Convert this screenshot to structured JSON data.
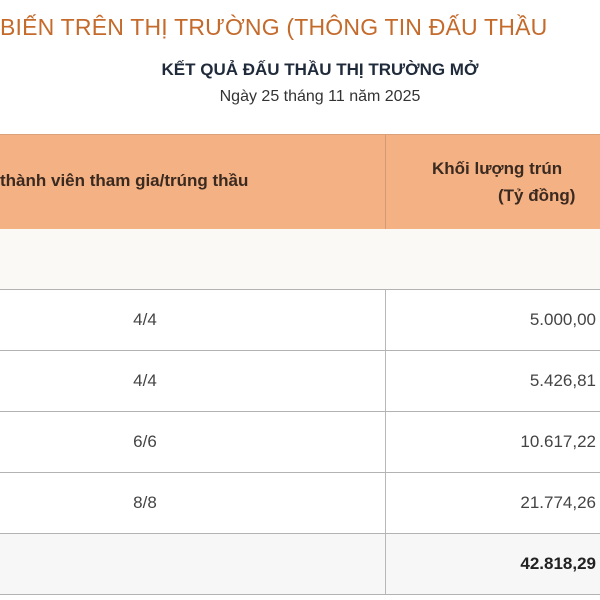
{
  "header": {
    "title": "BIẾN TRÊN THỊ TRƯỜNG (THÔNG TIN ĐẤU THẦU",
    "subtitle": "KẾT QUẢ ĐẤU THẦU THỊ TRƯỜNG MỞ",
    "date": "Ngày 25 tháng 11 năm 2025"
  },
  "table": {
    "columns": [
      "thành viên tham gia/trúng thầu",
      "Khối lượng trún",
      "(Tỷ đồng)"
    ],
    "rows": [
      {
        "members": "4/4",
        "volume": "5.000,00"
      },
      {
        "members": "4/4",
        "volume": "5.426,81"
      },
      {
        "members": "6/6",
        "volume": "10.617,22"
      },
      {
        "members": "8/8",
        "volume": "21.774,26"
      }
    ],
    "total": {
      "members": "",
      "volume": "42.818,29"
    }
  },
  "colors": {
    "title": "#c46a2b",
    "header_bg": "#f4b184"
  }
}
